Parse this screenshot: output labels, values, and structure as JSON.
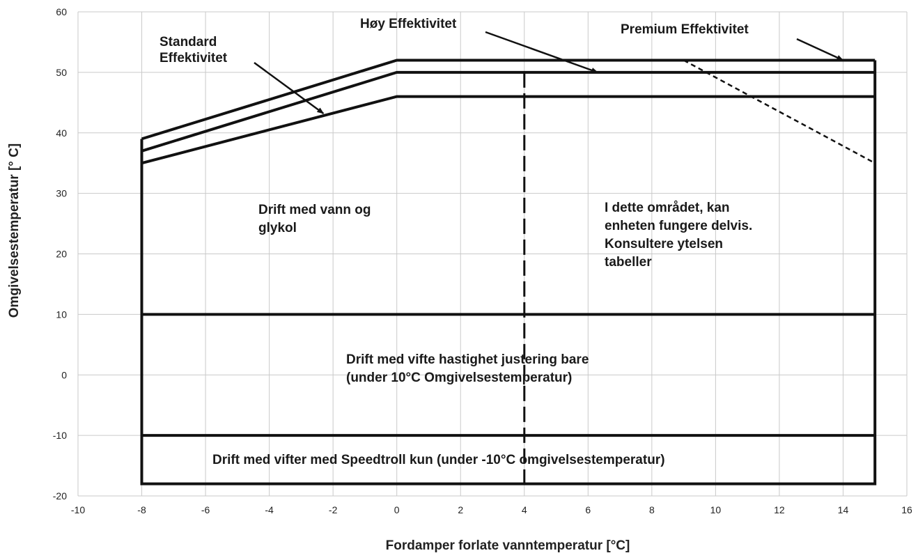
{
  "chart_data": {
    "type": "line",
    "xlabel": "Fordamper forlate vanntemperatur [°C]",
    "ylabel": "Omgivelsestemperatur [° C]",
    "xlim": [
      -10,
      16
    ],
    "ylim": [
      -20,
      60
    ],
    "x_ticks": [
      "-10",
      "-8",
      "-6",
      "-4",
      "-2",
      "0",
      "2",
      "4",
      "6",
      "8",
      "10",
      "12",
      "14",
      "16"
    ],
    "y_ticks": [
      "60",
      "50",
      "40",
      "30",
      "20",
      "10",
      "0",
      "-10",
      "-20"
    ],
    "grid": true,
    "series": [
      {
        "name": "Premium Effektivitet",
        "style": "solid",
        "points": [
          [
            -8,
            39
          ],
          [
            0,
            52
          ],
          [
            15,
            52
          ]
        ]
      },
      {
        "name": "Høy Effektivitet",
        "style": "solid",
        "points": [
          [
            -8,
            37
          ],
          [
            0,
            50
          ],
          [
            15,
            50
          ]
        ]
      },
      {
        "name": "Standard Effektivitet",
        "style": "solid",
        "points": [
          [
            -8,
            35
          ],
          [
            0,
            46
          ],
          [
            15,
            46
          ]
        ]
      },
      {
        "style": "solid",
        "points": [
          [
            -8,
            39
          ],
          [
            -8,
            -18
          ],
          [
            15,
            -18
          ],
          [
            15,
            52
          ]
        ]
      },
      {
        "style": "solid",
        "points": [
          [
            -8,
            10
          ],
          [
            15,
            10
          ]
        ]
      },
      {
        "style": "solid",
        "points": [
          [
            -8,
            -10
          ],
          [
            15,
            -10
          ]
        ]
      },
      {
        "style": "dashed",
        "points": [
          [
            4,
            50
          ],
          [
            4,
            -18
          ]
        ]
      },
      {
        "style": "short-dash",
        "points": [
          [
            9,
            52
          ],
          [
            15,
            35
          ]
        ]
      }
    ],
    "annotations": [
      {
        "id": "std",
        "lines": [
          "Standard",
          "Effektivitet"
        ],
        "arrow_to": [
          -2.3,
          43.2
        ]
      },
      {
        "id": "hoy",
        "lines": [
          "Høy Effektivitet"
        ],
        "arrow_to": [
          6.3,
          50
        ]
      },
      {
        "id": "prem",
        "lines": [
          "Premium Effektivitet"
        ],
        "arrow_to": [
          14.0,
          52
        ]
      },
      {
        "id": "glycol",
        "lines": [
          "Drift med vann og",
          "glykol"
        ]
      },
      {
        "id": "partial",
        "lines": [
          "I dette området, kan",
          "enheten fungere delvis.",
          "Konsultere ytelsen",
          "tabeller"
        ]
      },
      {
        "id": "fan",
        "lines": [
          "Drift med vifte hastighet justering bare",
          "(under 10°C Omgivelsestemperatur)"
        ]
      },
      {
        "id": "speedtroll",
        "lines": [
          "Drift med vifter med Speedtroll kun (under -10°C omgivelsestemperatur)"
        ]
      }
    ]
  }
}
